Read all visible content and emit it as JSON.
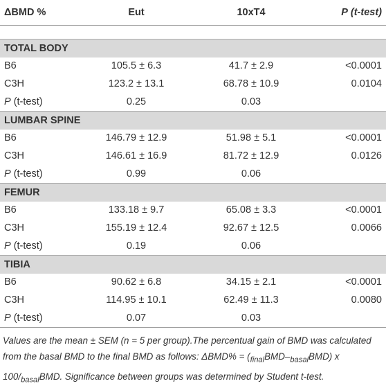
{
  "table": {
    "header": {
      "label": "ΔBMD %",
      "col1": "Eut",
      "col2": "10xT4",
      "col3_italic": "P",
      "col3": "(t-test)"
    },
    "sections": [
      {
        "title": "TOTAL BODY",
        "rows": [
          {
            "label": "B6",
            "eut": "105.5 ± 6.3",
            "t4": "41.7 ± 2.9",
            "p": "<0.0001"
          },
          {
            "label": "C3H",
            "eut": "123.2 ± 13.1",
            "t4": "68.78 ± 10.9",
            "p": "0.0104"
          }
        ],
        "ptest": {
          "label_italic": "P",
          "label": "(t-test)",
          "eut": "0.25",
          "t4": "0.03"
        }
      },
      {
        "title": "LUMBAR SPINE",
        "rows": [
          {
            "label": "B6",
            "eut": "146.79 ± 12.9",
            "t4": "51.98 ± 5.1",
            "p": "<0.0001"
          },
          {
            "label": "C3H",
            "eut": "146.61 ± 16.9",
            "t4": "81.72 ± 12.9",
            "p": "0.0126"
          }
        ],
        "ptest": {
          "label_italic": "P",
          "label": "(t-test)",
          "eut": "0.99",
          "t4": "0.06"
        }
      },
      {
        "title": "FEMUR",
        "rows": [
          {
            "label": "B6",
            "eut": "133.18 ± 9.7",
            "t4": "65.08 ± 3.3",
            "p": "<0.0001"
          },
          {
            "label": "C3H",
            "eut": "155.19 ± 12.4",
            "t4": "92.67 ± 12.5",
            "p": "0.0066"
          }
        ],
        "ptest": {
          "label_italic": "P",
          "label": "(t-test)",
          "eut": "0.19",
          "t4": "0.06"
        }
      },
      {
        "title": "TIBIA",
        "rows": [
          {
            "label": "B6",
            "eut": "90.62 ± 6.8",
            "t4": "34.15 ± 2.1",
            "p": "<0.0001"
          },
          {
            "label": "C3H",
            "eut": "114.95 ± 10.1",
            "t4": "62.49 ± 11.3",
            "p": "0.0080"
          }
        ],
        "ptest": {
          "label_italic": "P",
          "label": "(t-test)",
          "eut": "0.07",
          "t4": "0.03"
        }
      }
    ]
  },
  "footnote": [
    {
      "text": "Values are the mean ± SEM (n = 5 per group).The percentual gain of BMD was calculated from the basal BMD to the final BMD as follows: ΔBMD% = ("
    },
    {
      "sub": "final"
    },
    {
      "text": "BMD–"
    },
    {
      "sub": "basal"
    },
    {
      "text": "BMD) x 100/"
    },
    {
      "sub": "basal"
    },
    {
      "text": "BMD. Significance between groups was determined by Student t-test."
    }
  ]
}
